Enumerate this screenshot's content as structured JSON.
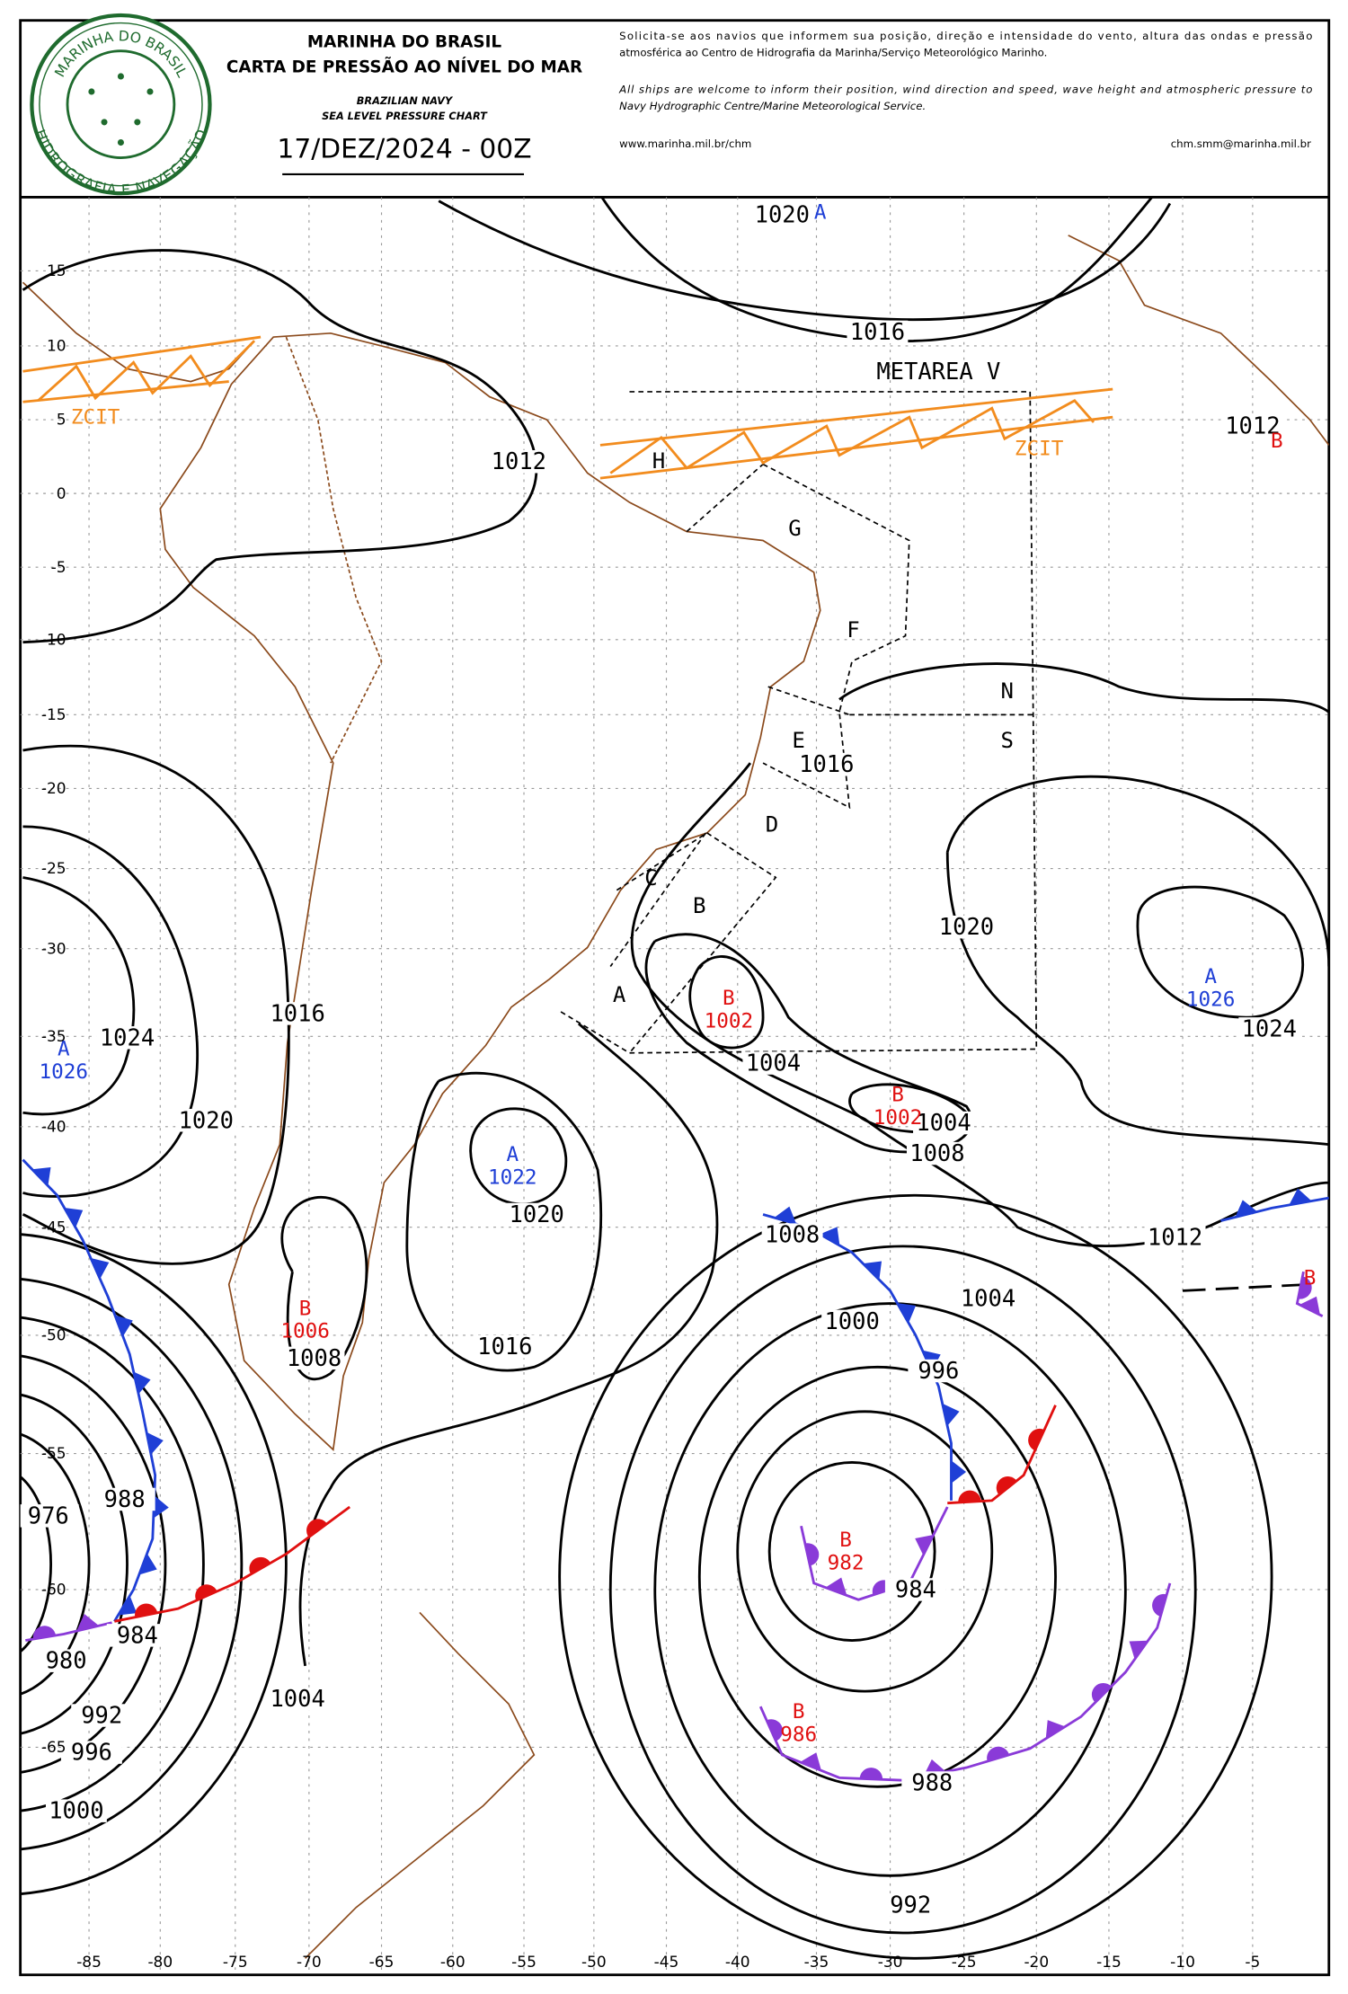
{
  "header": {
    "org": "MARINHA DO BRASIL",
    "title": "CARTA DE PRESSÃO AO NÍVEL DO MAR",
    "org_en": "BRAZILIAN NAVY",
    "title_en": "SEA LEVEL PRESSURE CHART",
    "date": "17/DEZ/2024 - 00Z",
    "request_pt": [
      "Solicita-se aos navios que informem sua posição, direção e intensidade do vento, altura das ondas e pressão",
      "atmosférica ao Centro de Hidrografia da Marinha/Serviço Meteorológico Marinho."
    ],
    "request_en": [
      "All ships are welcome to inform their position, wind direction and speed, wave height and atmospheric pressure to",
      "Navy Hydrographic Centre/Marine Meteorological Service."
    ],
    "website": "www.marinha.mil.br/chm",
    "email": "chm.smm@marinha.mil.br"
  },
  "logo": {
    "top": "MARINHA DO BRASIL",
    "bottom": "HIDROGRAFIA E NAVEGAÇÃO"
  },
  "map": {
    "latitudes": [
      15,
      10,
      5,
      0,
      -5,
      -10,
      -15,
      -20,
      -25,
      -30,
      -35,
      -40,
      -45,
      -50,
      -55,
      -60,
      -65
    ],
    "longitudes": [
      -85,
      -80,
      -75,
      -70,
      -65,
      -60,
      -55,
      -50,
      -45,
      -40,
      -35,
      -30,
      -25,
      -20,
      -15,
      -10,
      -5
    ],
    "region": "METAREA V",
    "zcit": [
      "ZCIT",
      "ZCIT"
    ],
    "areas": [
      "A",
      "B",
      "C",
      "D",
      "E",
      "F",
      "G",
      "H",
      "N",
      "S"
    ],
    "isobar_labels": [
      1020,
      1016,
      1012,
      1012,
      1016,
      1024,
      1020,
      1016,
      1020,
      1024,
      1004,
      1004,
      1008,
      1020,
      1008,
      1012,
      1004,
      1000,
      996,
      1016,
      1008,
      988,
      976,
      984,
      984,
      980,
      992,
      1004,
      996,
      1000,
      988,
      992
    ],
    "centers": [
      {
        "type": "A"
      },
      {
        "type": "B"
      },
      {
        "type": "A",
        "value": 1026
      },
      {
        "type": "A",
        "value": 1022
      },
      {
        "type": "A",
        "value": 1026
      },
      {
        "type": "B",
        "value": 1002
      },
      {
        "type": "B",
        "value": 1002
      },
      {
        "type": "B",
        "value": 1006
      },
      {
        "type": "B",
        "value": 982
      },
      {
        "type": "B",
        "value": 986
      },
      {
        "type": "B"
      }
    ]
  }
}
